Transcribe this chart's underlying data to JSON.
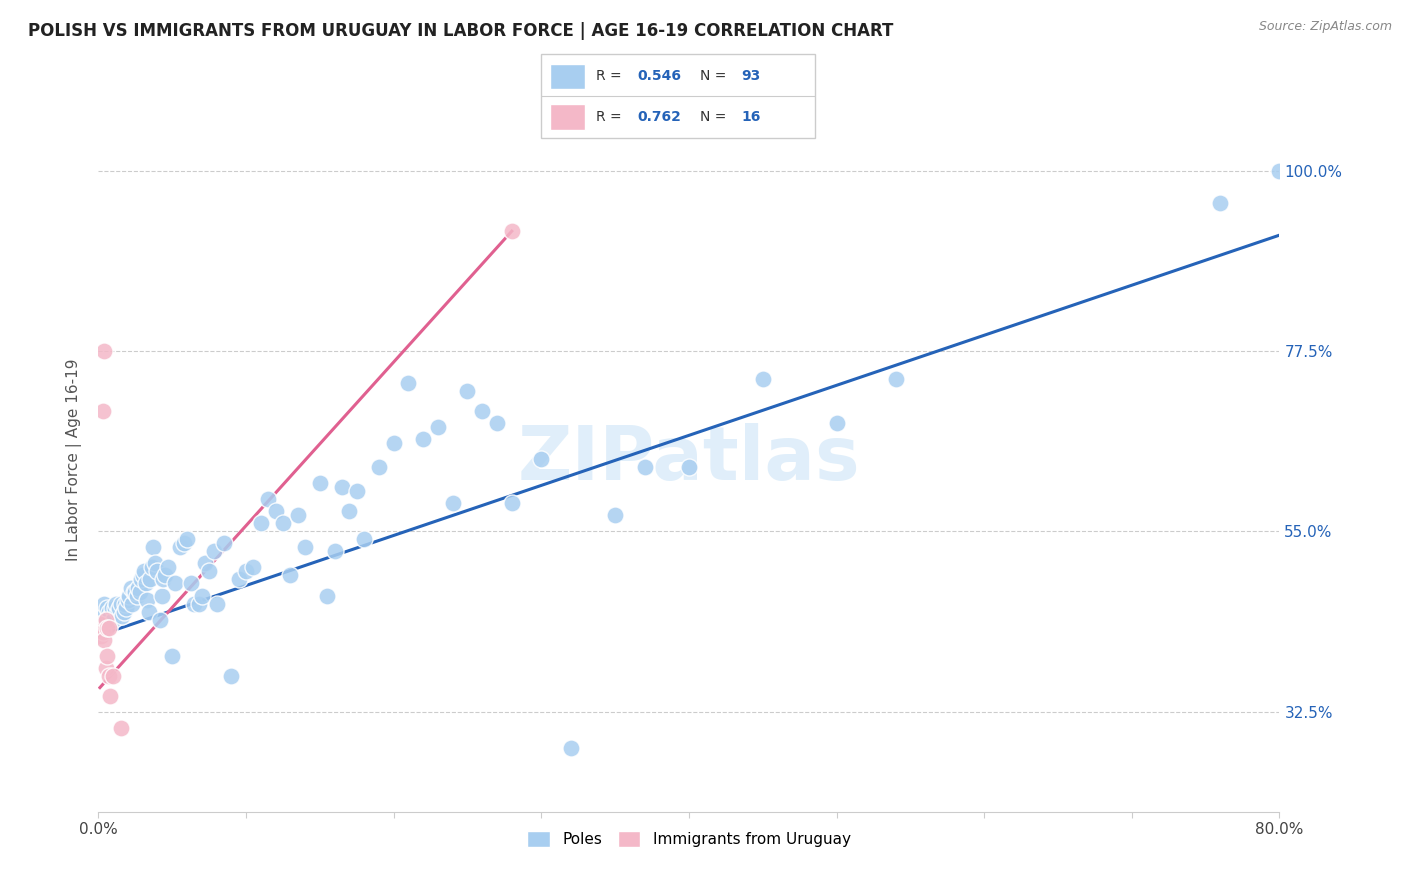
{
  "title": "POLISH VS IMMIGRANTS FROM URUGUAY IN LABOR FORCE | AGE 16-19 CORRELATION CHART",
  "source": "Source: ZipAtlas.com",
  "ylabel_text": "In Labor Force | Age 16-19",
  "x_min": 0.0,
  "x_max": 0.8,
  "y_min": 0.2,
  "y_max": 1.08,
  "x_ticks": [
    0.0,
    0.1,
    0.2,
    0.3,
    0.4,
    0.5,
    0.6,
    0.7,
    0.8
  ],
  "x_tick_labels": [
    "0.0%",
    "",
    "",
    "",
    "",
    "",
    "",
    "",
    "80.0%"
  ],
  "y_ticks": [
    0.325,
    0.55,
    0.775,
    1.0
  ],
  "y_tick_labels": [
    "32.5%",
    "55.0%",
    "77.5%",
    "100.0%"
  ],
  "blue_R": 0.546,
  "blue_N": 93,
  "pink_R": 0.762,
  "pink_N": 16,
  "blue_color": "#a8cef0",
  "pink_color": "#f4b8c8",
  "blue_line_color": "#2563b8",
  "pink_line_color": "#e06090",
  "watermark": "ZIPatlas",
  "blue_scatter_x": [
    0.002,
    0.004,
    0.006,
    0.007,
    0.008,
    0.009,
    0.01,
    0.011,
    0.012,
    0.013,
    0.014,
    0.015,
    0.016,
    0.017,
    0.018,
    0.019,
    0.02,
    0.021,
    0.022,
    0.023,
    0.024,
    0.025,
    0.026,
    0.027,
    0.028,
    0.029,
    0.03,
    0.031,
    0.032,
    0.033,
    0.034,
    0.035,
    0.036,
    0.037,
    0.038,
    0.04,
    0.042,
    0.043,
    0.044,
    0.045,
    0.047,
    0.05,
    0.052,
    0.055,
    0.058,
    0.06,
    0.063,
    0.065,
    0.068,
    0.07,
    0.072,
    0.075,
    0.078,
    0.08,
    0.085,
    0.09,
    0.095,
    0.1,
    0.105,
    0.11,
    0.115,
    0.12,
    0.125,
    0.13,
    0.135,
    0.14,
    0.15,
    0.155,
    0.16,
    0.165,
    0.17,
    0.175,
    0.18,
    0.19,
    0.2,
    0.21,
    0.22,
    0.23,
    0.24,
    0.25,
    0.26,
    0.27,
    0.28,
    0.3,
    0.32,
    0.35,
    0.37,
    0.4,
    0.45,
    0.5,
    0.54,
    0.76,
    0.8
  ],
  "blue_scatter_y": [
    0.445,
    0.46,
    0.455,
    0.45,
    0.445,
    0.455,
    0.44,
    0.455,
    0.46,
    0.45,
    0.455,
    0.46,
    0.445,
    0.45,
    0.46,
    0.455,
    0.465,
    0.47,
    0.48,
    0.46,
    0.475,
    0.475,
    0.47,
    0.48,
    0.475,
    0.49,
    0.495,
    0.5,
    0.485,
    0.465,
    0.45,
    0.49,
    0.505,
    0.53,
    0.51,
    0.5,
    0.44,
    0.47,
    0.49,
    0.495,
    0.505,
    0.395,
    0.485,
    0.53,
    0.535,
    0.54,
    0.485,
    0.46,
    0.46,
    0.47,
    0.51,
    0.5,
    0.525,
    0.46,
    0.535,
    0.37,
    0.49,
    0.5,
    0.505,
    0.56,
    0.59,
    0.575,
    0.56,
    0.495,
    0.57,
    0.53,
    0.61,
    0.47,
    0.525,
    0.605,
    0.575,
    0.6,
    0.54,
    0.63,
    0.66,
    0.735,
    0.665,
    0.68,
    0.585,
    0.725,
    0.7,
    0.685,
    0.585,
    0.64,
    0.28,
    0.57,
    0.63,
    0.63,
    0.74,
    0.685,
    0.74,
    0.96,
    1.0
  ],
  "pink_scatter_x": [
    0.001,
    0.002,
    0.003,
    0.003,
    0.004,
    0.004,
    0.005,
    0.005,
    0.006,
    0.006,
    0.007,
    0.007,
    0.008,
    0.01,
    0.015,
    0.28
  ],
  "pink_scatter_y": [
    0.435,
    0.42,
    0.7,
    0.425,
    0.775,
    0.415,
    0.44,
    0.38,
    0.43,
    0.395,
    0.43,
    0.37,
    0.345,
    0.37,
    0.305,
    0.925
  ],
  "blue_line_x0": 0.0,
  "blue_line_x1": 0.8,
  "blue_line_y0": 0.42,
  "blue_line_y1": 0.92,
  "pink_line_x0": 0.001,
  "pink_line_x1": 0.28,
  "pink_line_y0": 0.355,
  "pink_line_y1": 0.925
}
